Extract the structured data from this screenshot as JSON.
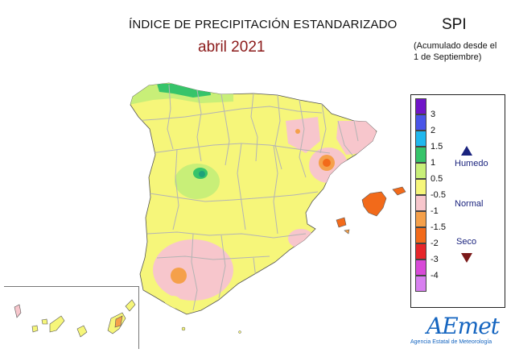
{
  "header": {
    "title": "ÍNDICE DE PRECIPITACIÓN ESTANDARIZADO",
    "period": "abril 2021",
    "index_name": "SPI",
    "note_line1": "(Acumulado desde el",
    "note_line2": "1 de Septiembre)"
  },
  "legend": {
    "classes": [
      {
        "label": "3",
        "color": "#7015c8"
      },
      {
        "label": "2",
        "color": "#4a55e8"
      },
      {
        "label": "1.5",
        "color": "#20b8ee"
      },
      {
        "label": "1",
        "color": "#36c46a"
      },
      {
        "label": "0.5",
        "color": "#c8ef78"
      },
      {
        "label": "-0.5",
        "color": "#f6f67a"
      },
      {
        "label": "-1",
        "color": "#f7c6cc"
      },
      {
        "label": "-1.5",
        "color": "#f5a04a"
      },
      {
        "label": "-2",
        "color": "#f26a1a"
      },
      {
        "label": "-3",
        "color": "#e6262a"
      },
      {
        "label": "-4",
        "color": "#d84ad8"
      },
      {
        "label": "",
        "color": "#d880f0"
      }
    ],
    "humid_label": "Humedo",
    "normal_label": "Normal",
    "dry_label": "Seco"
  },
  "logo": {
    "text": "AEmet",
    "subtitle": "Agencia Estatal de Meteorología"
  }
}
